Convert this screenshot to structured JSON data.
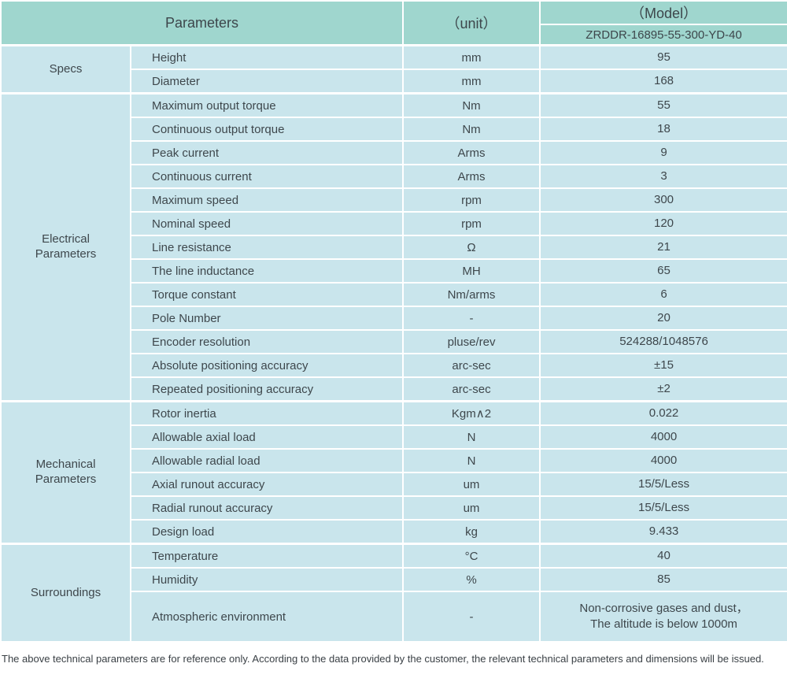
{
  "colors": {
    "header_bg": "#9fd6ce",
    "cell_bg": "#c9e5ec",
    "grid_line": "#ffffff",
    "text": "#3e474c"
  },
  "table": {
    "header": {
      "parameters": "Parameters",
      "unit": "（unit）",
      "model_label": "（Model）",
      "model_value": "ZRDDR-16895-55-300-YD-40"
    },
    "sections": [
      {
        "name": "Specs",
        "rows": [
          {
            "param": "Height",
            "unit": "mm",
            "value": "95"
          },
          {
            "param": "Diameter",
            "unit": "mm",
            "value": "168"
          }
        ]
      },
      {
        "name": "Electrical\nParameters",
        "rows": [
          {
            "param": "Maximum output torque",
            "unit": "Nm",
            "value": "55"
          },
          {
            "param": "Continuous output torque",
            "unit": "Nm",
            "value": "18"
          },
          {
            "param": "Peak current",
            "unit": "Arms",
            "value": "9"
          },
          {
            "param": "Continuous current",
            "unit": "Arms",
            "value": "3"
          },
          {
            "param": "Maximum speed",
            "unit": "rpm",
            "value": "300"
          },
          {
            "param": "Nominal speed",
            "unit": "rpm",
            "value": "120"
          },
          {
            "param": "Line resistance",
            "unit": "Ω",
            "value": "21"
          },
          {
            "param": "The line inductance",
            "unit": "MH",
            "value": "65"
          },
          {
            "param": "Torque constant",
            "unit": "Nm/arms",
            "value": "6"
          },
          {
            "param": "Pole Number",
            "unit": "-",
            "value": "20"
          },
          {
            "param": "Encoder resolution",
            "unit": "pluse/rev",
            "value": "524288/1048576"
          },
          {
            "param": "Absolute positioning accuracy",
            "unit": "arc-sec",
            "value": "±15"
          },
          {
            "param": "Repeated positioning accuracy",
            "unit": "arc-sec",
            "value": "±2"
          }
        ]
      },
      {
        "name": "Mechanical\nParameters",
        "rows": [
          {
            "param": "Rotor inertia",
            "unit": "Kgm∧2",
            "value": "0.022"
          },
          {
            "param": "Allowable axial load",
            "unit": "N",
            "value": "4000"
          },
          {
            "param": "Allowable radial load",
            "unit": "N",
            "value": "4000"
          },
          {
            "param": "Axial runout accuracy",
            "unit": "um",
            "value": "15/5/Less"
          },
          {
            "param": "Radial runout accuracy",
            "unit": "um",
            "value": "15/5/Less"
          },
          {
            "param": "Design load",
            "unit": "kg",
            "value": "9.433"
          }
        ]
      },
      {
        "name": "Surroundings",
        "rows": [
          {
            "param": "Temperature",
            "unit": "°C",
            "value": "40"
          },
          {
            "param": "Humidity",
            "unit": "%",
            "value": "85"
          },
          {
            "param": "Atmospheric environment",
            "unit": "-",
            "value": "Non-corrosive gases and dust，\nThe altitude is below 1000m"
          }
        ]
      }
    ]
  },
  "footer": {
    "note": "The above technical parameters are for reference only. According to the data provided by the customer, the relevant technical parameters and dimensions will be issued."
  }
}
